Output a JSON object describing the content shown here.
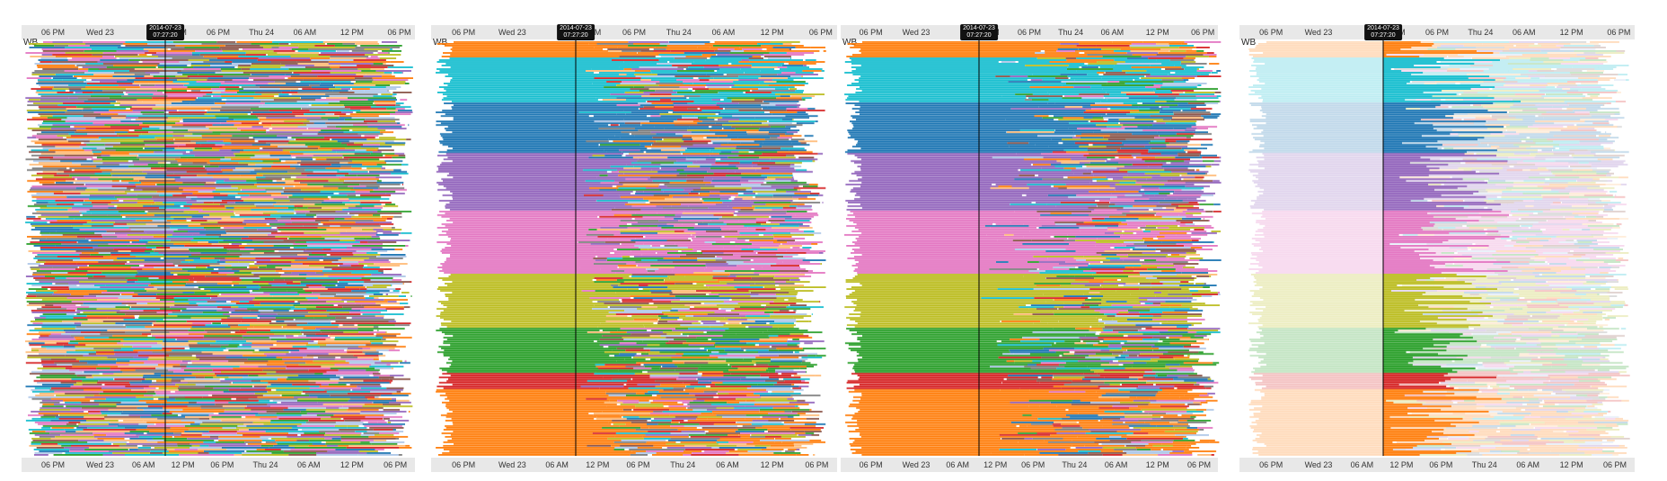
{
  "chart_data": [
    {
      "type": "gantt-timeline",
      "row_label": "WB",
      "cursor_label": [
        "2014-07-23",
        "07:27:20"
      ],
      "top_axis_ticks": [
        "06 PM",
        "Wed 23",
        "12 PM",
        "06 PM",
        "Thu 24",
        "06 AM",
        "12 PM",
        "06 PM"
      ],
      "bottom_axis_ticks": [
        "06 PM",
        "Wed 23",
        "06 AM",
        "12 PM",
        "06 PM",
        "Thu 24",
        "06 AM",
        "12 PM",
        "06 PM"
      ],
      "ordering": "random",
      "bar_style": "full"
    },
    {
      "type": "gantt-timeline",
      "row_label": "WB",
      "cursor_label": [
        "2014-07-23",
        "07:27:20"
      ],
      "top_axis_ticks": [
        "06 PM",
        "Wed 23",
        "12 PM",
        "06 PM",
        "Thu 24",
        "06 AM",
        "12 PM",
        "06 PM"
      ],
      "bottom_axis_ticks": [
        "06 PM",
        "Wed 23",
        "06 AM",
        "12 PM",
        "06 PM",
        "Thu 24",
        "06 AM",
        "12 PM",
        "06 PM"
      ],
      "ordering": "grouped-by-state",
      "bar_style": "full"
    },
    {
      "type": "gantt-timeline",
      "row_label": "WB",
      "cursor_label": [
        "2014-07-23",
        "07:27:20"
      ],
      "top_axis_ticks": [
        "06 PM",
        "Wed 23",
        "12 PM",
        "06 PM",
        "Thu 24",
        "06 AM",
        "12 PM",
        "06 PM"
      ],
      "bottom_axis_ticks": [
        "06 PM",
        "Wed 23",
        "06 AM",
        "12 PM",
        "06 PM",
        "Thu 24",
        "06 AM",
        "12 PM",
        "06 PM"
      ],
      "ordering": "grouped-and-sorted",
      "bar_style": "full"
    },
    {
      "type": "gantt-timeline",
      "row_label": "WB",
      "cursor_label": [
        "2014-07-23",
        "07:27:20"
      ],
      "top_axis_ticks": [
        "06 PM",
        "Wed 23",
        "12 PM",
        "06 PM",
        "Thu 24",
        "06 AM",
        "12 PM",
        "06 PM"
      ],
      "bottom_axis_ticks": [
        "06 PM",
        "Wed 23",
        "06 AM",
        "12 PM",
        "06 PM",
        "Thu 24",
        "06 AM",
        "12 PM",
        "06 PM"
      ],
      "ordering": "grouped-and-sorted",
      "bar_style": "faded-with-highlight"
    }
  ],
  "state_colors": [
    "#ff7f0e",
    "#17becf",
    "#1f77b4",
    "#9467bd",
    "#e377c2",
    "#bcbd22",
    "#2ca02c",
    "#d62728",
    "#aec7e8",
    "#8c564b",
    "#ffbb78",
    "#7f7f7f"
  ]
}
